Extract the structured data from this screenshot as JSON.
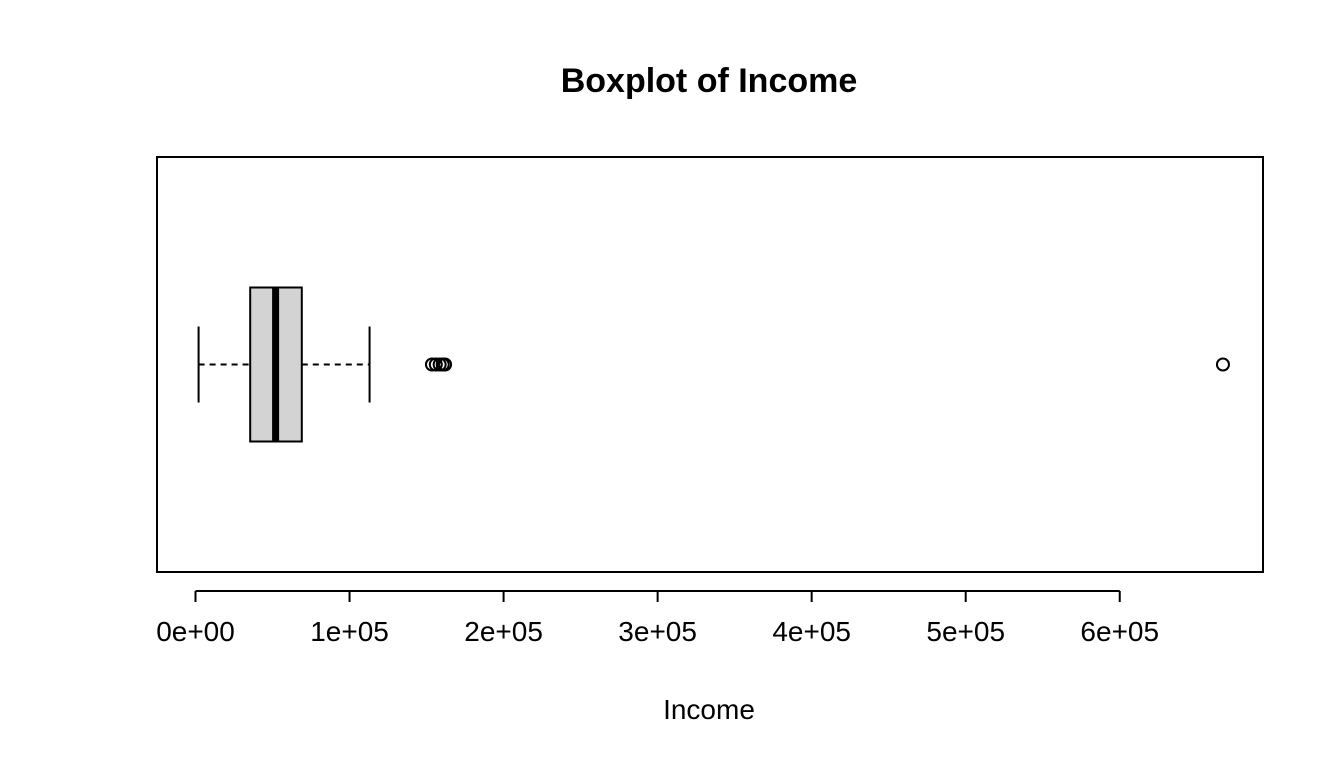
{
  "chart_data": {
    "type": "boxplot",
    "orientation": "horizontal",
    "title": "Boxplot of Income",
    "xlabel": "Income",
    "ylabel": "",
    "xlim": [
      -25000,
      693000
    ],
    "ticks": [
      {
        "value": 0,
        "label": "0e+00"
      },
      {
        "value": 100000,
        "label": "1e+05"
      },
      {
        "value": 200000,
        "label": "2e+05"
      },
      {
        "value": 300000,
        "label": "3e+05"
      },
      {
        "value": 400000,
        "label": "4e+05"
      },
      {
        "value": 500000,
        "label": "5e+05"
      },
      {
        "value": 600000,
        "label": "6e+05"
      }
    ],
    "box": {
      "whisker_low": 2000,
      "q1": 35500,
      "median": 52000,
      "q3": 69000,
      "whisker_high": 113000
    },
    "outliers": [
      153500,
      156000,
      158500,
      160500,
      162000,
      667000
    ],
    "grid": false,
    "colors": {
      "box_fill": "#d3d3d3",
      "stroke": "#000000",
      "background": "#ffffff"
    }
  }
}
